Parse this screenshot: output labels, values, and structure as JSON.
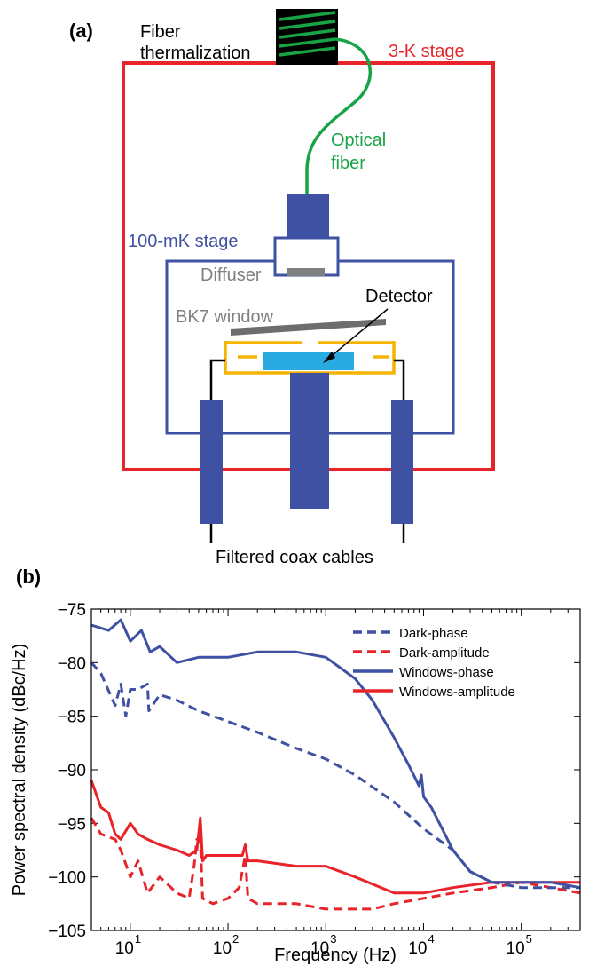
{
  "panel_a": {
    "label": "(a)",
    "fiber_thermalization_line1": "Fiber",
    "fiber_thermalization_line2": "thermalization",
    "stage_3k": "3-K stage",
    "optical_fiber_line1": "Optical",
    "optical_fiber_line2": "fiber",
    "stage_100mk": "100-mK stage",
    "diffuser": "Diffuser",
    "detector": "Detector",
    "bk7_window": "BK7 window",
    "coax": "Filtered coax cables",
    "colors": {
      "stage_3k": "#e8242a",
      "stage_100mk": "#3f51a2",
      "fiber": "#17a346",
      "window": "#6d6d6d",
      "detector": "#29abe2",
      "housing": "#f5b400"
    }
  },
  "panel_b": {
    "label": "(b)"
  },
  "chart_data": {
    "type": "line",
    "xlabel": "Frequency (Hz)",
    "ylabel": "Power spectral density (dBc/Hz)",
    "x_scale": "log",
    "xlim": [
      4,
      400000
    ],
    "ylim": [
      -105,
      -75
    ],
    "yticks": [
      -75,
      -80,
      -85,
      -90,
      -95,
      -100,
      -105
    ],
    "xtick_labels": [
      {
        "base": "10",
        "exp": "1"
      },
      {
        "base": "10",
        "exp": "2"
      },
      {
        "base": "10",
        "exp": "3"
      },
      {
        "base": "10",
        "exp": "4"
      },
      {
        "base": "10",
        "exp": "5"
      }
    ],
    "legend_position": "top-right",
    "series": [
      {
        "name": "Dark-phase",
        "color": "#3f51a2",
        "style": "dashed",
        "x": [
          4,
          5,
          7,
          8,
          9,
          10,
          12,
          15,
          15.5,
          20,
          30,
          50,
          100,
          200,
          500,
          1000,
          2000,
          5000,
          10000,
          20000,
          30000,
          50000,
          100000,
          200000,
          400000
        ],
        "y": [
          -80,
          -81,
          -84,
          -82,
          -85,
          -82.5,
          -82.5,
          -82,
          -84.5,
          -83,
          -83.5,
          -84.5,
          -85.5,
          -86.5,
          -88,
          -89,
          -90.5,
          -93,
          -95.5,
          -97.5,
          -99.5,
          -100.5,
          -101,
          -101,
          -101
        ]
      },
      {
        "name": "Dark-amplitude",
        "color": "#e8242a",
        "style": "dashed",
        "x": [
          4,
          5,
          7,
          8,
          10,
          12,
          15,
          20,
          30,
          40,
          45,
          48,
          52,
          55,
          70,
          100,
          130,
          150,
          160,
          200,
          500,
          1000,
          3000,
          5000,
          10000,
          20000,
          50000,
          100000,
          200000,
          400000
        ],
        "y": [
          -94.5,
          -96,
          -96.5,
          -97.5,
          -100,
          -98.5,
          -101.5,
          -100,
          -101.5,
          -102,
          -99,
          -96.5,
          -96.5,
          -102,
          -102.5,
          -102,
          -101,
          -98,
          -102,
          -102.5,
          -102.5,
          -103,
          -103,
          -102.5,
          -102,
          -101.5,
          -101,
          -100.5,
          -101,
          -101.5
        ]
      },
      {
        "name": "Windows-phase",
        "color": "#3f51a2",
        "style": "solid",
        "x": [
          4,
          6,
          8,
          10,
          13,
          16,
          20,
          30,
          50,
          100,
          200,
          500,
          1000,
          2000,
          3000,
          5000,
          7000,
          9000,
          9500,
          10000,
          12000,
          20000,
          30000,
          50000,
          100000,
          200000,
          400000
        ],
        "y": [
          -76.5,
          -77,
          -76,
          -78,
          -77,
          -79,
          -78.5,
          -80,
          -79.5,
          -79.5,
          -79,
          -79,
          -79.5,
          -81.5,
          -83.5,
          -87,
          -89.5,
          -91.5,
          -90.5,
          -92.5,
          -93.5,
          -97.5,
          -99.5,
          -100.5,
          -100.5,
          -100.5,
          -101
        ]
      },
      {
        "name": "Windows-amplitude",
        "color": "#e8242a",
        "style": "solid",
        "x": [
          4,
          5,
          6,
          7,
          8,
          10,
          12,
          15,
          20,
          30,
          40,
          48,
          52,
          55,
          60,
          100,
          140,
          150,
          160,
          200,
          500,
          1000,
          2000,
          5000,
          10000,
          20000,
          50000,
          100000,
          200000,
          400000
        ],
        "y": [
          -91,
          -93.5,
          -94,
          -96,
          -96.5,
          -95,
          -96,
          -96.5,
          -97,
          -97.5,
          -98,
          -97.5,
          -94.5,
          -98.5,
          -98,
          -98,
          -98,
          -97,
          -98.5,
          -98.5,
          -99,
          -99,
          -100,
          -101.5,
          -101.5,
          -101,
          -100.5,
          -100.5,
          -100.5,
          -100.5
        ]
      }
    ]
  }
}
